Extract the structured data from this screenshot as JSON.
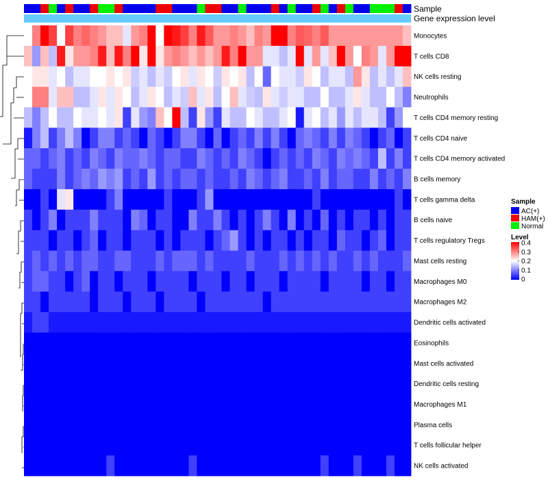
{
  "chart_data": {
    "type": "heatmap",
    "annotation_tracks": [
      "Sample",
      "Gene expression level"
    ],
    "rows": [
      "Monocytes",
      "T cells CD8",
      "NK cells resting",
      "Neutrophils",
      "T cells CD4 memory resting",
      "T cells CD4 naive",
      "T cells CD4 memory activated",
      "B cells memory",
      "T cells gamma delta",
      "B cells naive",
      "T cells regulatory  Tregs",
      "Mast cells resting",
      "Macrophages M0",
      "Macrophages M2",
      "Dendritic cells activated",
      "Eosinophils",
      "Mast cells activated",
      "Dendritic cells resting",
      "Macrophages M1",
      "Plasma cells",
      "T cells follicular helper",
      "NK cells activated"
    ],
    "sample_groups": [
      "A",
      "A",
      "H",
      "N",
      "A",
      "H",
      "A",
      "A",
      "H",
      "N",
      "N",
      "H",
      "A",
      "A",
      "A",
      "A",
      "H",
      "H",
      "A",
      "A",
      "A",
      "N",
      "H",
      "H",
      "A",
      "A",
      "N",
      "A",
      "A",
      "A",
      "H",
      "A",
      "N",
      "A",
      "A",
      "H",
      "N",
      "A",
      "H",
      "N",
      "A",
      "A",
      "N",
      "N",
      "N",
      "H",
      "A"
    ],
    "values": [
      [
        0.2,
        0.3,
        0.4,
        0.35,
        0.2,
        0.35,
        0.3,
        0.32,
        0.3,
        0.28,
        0.25,
        0.25,
        0.18,
        0.28,
        0.3,
        0.4,
        0.2,
        0.4,
        0.38,
        0.35,
        0.3,
        0.38,
        0.33,
        0.28,
        0.28,
        0.3,
        0.28,
        0.25,
        0.3,
        0.28,
        0.4,
        0.4,
        0.3,
        0.33,
        0.32,
        0.3,
        0.33,
        0.28,
        0.28,
        0.28,
        0.28,
        0.28,
        0.28,
        0.28,
        0.28,
        0.28,
        0.25
      ],
      [
        0.25,
        0.12,
        0.25,
        0.15,
        0.38,
        0.22,
        0.28,
        0.28,
        0.3,
        0.38,
        0.25,
        0.38,
        0.3,
        0.4,
        0.22,
        0.4,
        0.22,
        0.28,
        0.3,
        0.28,
        0.25,
        0.28,
        0.25,
        0.28,
        0.38,
        0.3,
        0.4,
        0.28,
        0.28,
        0.18,
        0.18,
        0.15,
        0.18,
        0.4,
        0.18,
        0.28,
        0.18,
        0.25,
        0.4,
        0.28,
        0.2,
        0.3,
        0.28,
        0.18,
        0.28,
        0.4,
        0.4
      ],
      [
        0.2,
        0.22,
        0.22,
        0.18,
        0.2,
        0.15,
        0.18,
        0.18,
        0.2,
        0.2,
        0.22,
        0.2,
        0.22,
        0.16,
        0.18,
        0.15,
        0.18,
        0.16,
        0.2,
        0.22,
        0.18,
        0.22,
        0.2,
        0.16,
        0.22,
        0.2,
        0.22,
        0.15,
        0.2,
        0.08,
        0.2,
        0.18,
        0.18,
        0.16,
        0.22,
        0.2,
        0.15,
        0.18,
        0.18,
        0.15,
        0.28,
        0.22,
        0.15,
        0.18,
        0.15,
        0.18,
        0.25
      ],
      [
        0.2,
        0.3,
        0.3,
        0.18,
        0.25,
        0.25,
        0.15,
        0.15,
        0.18,
        0.22,
        0.18,
        0.22,
        0.2,
        0.15,
        0.18,
        0.22,
        0.2,
        0.15,
        0.18,
        0.16,
        0.25,
        0.18,
        0.22,
        0.15,
        0.2,
        0.25,
        0.18,
        0.16,
        0.15,
        0.22,
        0.18,
        0.16,
        0.18,
        0.18,
        0.15,
        0.15,
        0.2,
        0.15,
        0.15,
        0.18,
        0.22,
        0.18,
        0.15,
        0.15,
        0.2,
        0.15,
        0.1
      ],
      [
        0.15,
        0.1,
        0.15,
        0.2,
        0.15,
        0.15,
        0.2,
        0.18,
        0.18,
        0.2,
        0.18,
        0.22,
        0.05,
        0.18,
        0.12,
        0.1,
        0.25,
        0.2,
        0.4,
        0.15,
        0.05,
        0.22,
        0.12,
        0.05,
        0.18,
        0.15,
        0.15,
        0.2,
        0.18,
        0.15,
        0.15,
        0.18,
        0.2,
        0.02,
        0.18,
        0.2,
        0.15,
        0.18,
        0.12,
        0.18,
        0.15,
        0.18,
        0.18,
        0.15,
        0.05,
        0.12,
        0.2
      ],
      [
        0.02,
        0.1,
        0.15,
        0.05,
        0.1,
        0.15,
        0.1,
        0.0,
        0.05,
        0.1,
        0.1,
        0.05,
        0.08,
        0.05,
        0.0,
        0.08,
        0.05,
        0.0,
        0.05,
        0.1,
        0.1,
        0.05,
        0.0,
        0.08,
        0.0,
        0.05,
        0.08,
        0.05,
        0.1,
        0.05,
        0.1,
        0.05,
        0.0,
        0.08,
        0.1,
        0.08,
        0.05,
        0.1,
        0.05,
        0.1,
        0.08,
        0.05,
        0.0,
        0.05,
        0.08,
        0.0,
        0.05
      ],
      [
        0.08,
        0.08,
        0.05,
        0.08,
        0.1,
        0.05,
        0.08,
        0.05,
        0.1,
        0.08,
        0.05,
        0.1,
        0.08,
        0.08,
        0.1,
        0.08,
        0.05,
        0.08,
        0.08,
        0.05,
        0.05,
        0.1,
        0.08,
        0.05,
        0.08,
        0.05,
        0.1,
        0.08,
        0.05,
        0.0,
        0.05,
        0.08,
        0.05,
        0.08,
        0.05,
        0.1,
        0.08,
        0.05,
        0.1,
        0.08,
        0.1,
        0.08,
        0.05,
        0.15,
        0.05,
        0.1,
        0.05
      ],
      [
        0.08,
        0.05,
        0.05,
        0.05,
        0.1,
        0.05,
        0.08,
        0.1,
        0.08,
        0.12,
        0.1,
        0.12,
        0.05,
        0.08,
        0.05,
        0.12,
        0.05,
        0.08,
        0.05,
        0.08,
        0.08,
        0.05,
        0.08,
        0.05,
        0.05,
        0.08,
        0.05,
        0.1,
        0.08,
        0.05,
        0.08,
        0.1,
        0.05,
        0.05,
        0.08,
        0.05,
        0.1,
        0.05,
        0.08,
        0.08,
        0.05,
        0.05,
        0.1,
        0.05,
        0.08,
        0.05,
        0.1
      ],
      [
        0.0,
        0.0,
        0.05,
        0.0,
        0.18,
        0.22,
        0.0,
        0.0,
        0.0,
        0.0,
        0.05,
        0.1,
        0.0,
        0.0,
        0.0,
        0.0,
        0.0,
        0.05,
        0.0,
        0.0,
        0.0,
        0.05,
        0.12,
        0.0,
        0.0,
        0.0,
        0.0,
        0.0,
        0.0,
        0.0,
        0.0,
        0.0,
        0.0,
        0.0,
        0.0,
        0.05,
        0.0,
        0.0,
        0.0,
        0.0,
        0.0,
        0.0,
        0.0,
        0.0,
        0.0,
        0.05,
        0.0
      ],
      [
        0.05,
        0.0,
        0.05,
        0.1,
        0.0,
        0.05,
        0.05,
        0.05,
        0.1,
        0.05,
        0.05,
        0.05,
        0.0,
        0.1,
        0.08,
        0.0,
        0.05,
        0.05,
        0.0,
        0.0,
        0.1,
        0.05,
        0.05,
        0.1,
        0.05,
        0.0,
        0.05,
        0.0,
        0.05,
        0.1,
        0.05,
        0.0,
        0.1,
        0.0,
        0.05,
        0.0,
        0.08,
        0.0,
        0.05,
        0.0,
        0.05,
        0.05,
        0.0,
        0.05,
        0.0,
        0.05,
        0.05
      ],
      [
        0.05,
        0.05,
        0.05,
        0.0,
        0.05,
        0.05,
        0.0,
        0.05,
        0.08,
        0.0,
        0.05,
        0.05,
        0.0,
        0.05,
        0.05,
        0.05,
        0.0,
        0.05,
        0.0,
        0.05,
        0.05,
        0.05,
        0.0,
        0.05,
        0.08,
        0.12,
        0.05,
        0.0,
        0.05,
        0.0,
        0.05,
        0.05,
        0.0,
        0.05,
        0.0,
        0.05,
        0.05,
        0.0,
        0.08,
        0.05,
        0.05,
        0.0,
        0.05,
        0.08,
        0.0,
        0.05,
        0.05
      ],
      [
        0.05,
        0.08,
        0.05,
        0.08,
        0.05,
        0.08,
        0.05,
        0.08,
        0.08,
        0.05,
        0.05,
        0.08,
        0.08,
        0.05,
        0.05,
        0.05,
        0.08,
        0.05,
        0.08,
        0.08,
        0.08,
        0.05,
        0.08,
        0.05,
        0.05,
        0.05,
        0.05,
        0.08,
        0.05,
        0.05,
        0.05,
        0.08,
        0.05,
        0.08,
        0.05,
        0.08,
        0.05,
        0.08,
        0.05,
        0.05,
        0.08,
        0.05,
        0.08,
        0.05,
        0.05,
        0.05,
        0.08
      ],
      [
        0.05,
        0.08,
        0.08,
        0.05,
        0.05,
        0.0,
        0.05,
        0.08,
        0.0,
        0.05,
        0.05,
        0.0,
        0.05,
        0.05,
        0.05,
        0.0,
        0.05,
        0.05,
        0.05,
        0.05,
        0.0,
        0.05,
        0.05,
        0.05,
        0.0,
        0.05,
        0.05,
        0.0,
        0.05,
        0.05,
        0.05,
        0.0,
        0.05,
        0.05,
        0.05,
        0.05,
        0.0,
        0.05,
        0.05,
        0.05,
        0.05,
        0.0,
        0.05,
        0.05,
        0.0,
        0.05,
        0.05
      ],
      [
        0.05,
        0.05,
        0.0,
        0.05,
        0.05,
        0.05,
        0.05,
        0.05,
        0.0,
        0.05,
        0.05,
        0.05,
        0.0,
        0.05,
        0.05,
        0.05,
        0.0,
        0.05,
        0.05,
        0.05,
        0.05,
        0.0,
        0.05,
        0.05,
        0.05,
        0.05,
        0.05,
        0.05,
        0.05,
        0.0,
        0.05,
        0.05,
        0.05,
        0.05,
        0.05,
        0.05,
        0.05,
        0.05,
        0.05,
        0.05,
        0.05,
        0.05,
        0.05,
        0.05,
        0.05,
        0.05,
        0.05
      ],
      [
        0.02,
        0.05,
        0.05,
        0.02,
        0.02,
        0.02,
        0.02,
        0.02,
        0.02,
        0.02,
        0.02,
        0.02,
        0.02,
        0.02,
        0.02,
        0.02,
        0.02,
        0.02,
        0.02,
        0.02,
        0.02,
        0.02,
        0.02,
        0.02,
        0.02,
        0.02,
        0.02,
        0.02,
        0.02,
        0.02,
        0.02,
        0.02,
        0.02,
        0.02,
        0.02,
        0.02,
        0.02,
        0.02,
        0.02,
        0.02,
        0.02,
        0.02,
        0.02,
        0.02,
        0.02,
        0.02,
        0.02
      ],
      [
        0,
        0,
        0,
        0,
        0,
        0,
        0,
        0,
        0,
        0,
        0,
        0,
        0,
        0,
        0,
        0,
        0,
        0,
        0,
        0,
        0,
        0,
        0,
        0,
        0,
        0,
        0,
        0,
        0,
        0,
        0,
        0,
        0,
        0,
        0,
        0,
        0,
        0,
        0,
        0,
        0,
        0,
        0,
        0,
        0,
        0,
        0
      ],
      [
        0,
        0,
        0,
        0,
        0,
        0,
        0,
        0,
        0,
        0,
        0,
        0,
        0,
        0,
        0,
        0,
        0,
        0,
        0,
        0,
        0,
        0,
        0,
        0,
        0,
        0,
        0,
        0,
        0,
        0,
        0,
        0,
        0,
        0,
        0,
        0,
        0,
        0,
        0,
        0,
        0,
        0,
        0,
        0,
        0,
        0,
        0
      ],
      [
        0,
        0,
        0,
        0,
        0,
        0,
        0,
        0,
        0,
        0,
        0,
        0,
        0,
        0,
        0,
        0,
        0,
        0,
        0,
        0,
        0,
        0,
        0,
        0,
        0,
        0,
        0,
        0,
        0,
        0,
        0,
        0,
        0,
        0,
        0,
        0,
        0,
        0,
        0,
        0,
        0,
        0,
        0,
        0,
        0,
        0,
        0
      ],
      [
        0,
        0,
        0,
        0,
        0,
        0,
        0,
        0,
        0,
        0,
        0,
        0,
        0,
        0,
        0,
        0,
        0,
        0,
        0,
        0,
        0,
        0,
        0,
        0,
        0,
        0,
        0,
        0,
        0,
        0,
        0,
        0,
        0,
        0,
        0,
        0,
        0,
        0,
        0,
        0,
        0,
        0,
        0,
        0,
        0,
        0,
        0
      ],
      [
        0,
        0,
        0,
        0,
        0,
        0,
        0,
        0,
        0,
        0,
        0,
        0,
        0,
        0,
        0,
        0,
        0,
        0,
        0,
        0,
        0,
        0,
        0,
        0,
        0,
        0,
        0,
        0,
        0,
        0,
        0,
        0,
        0,
        0,
        0,
        0,
        0,
        0,
        0,
        0,
        0,
        0,
        0,
        0,
        0,
        0,
        0
      ],
      [
        0,
        0,
        0,
        0,
        0,
        0,
        0,
        0,
        0,
        0,
        0,
        0,
        0,
        0,
        0,
        0,
        0,
        0,
        0,
        0,
        0,
        0,
        0,
        0,
        0,
        0,
        0,
        0,
        0,
        0,
        0,
        0,
        0,
        0,
        0,
        0,
        0,
        0,
        0,
        0,
        0,
        0,
        0,
        0,
        0,
        0,
        0
      ],
      [
        0,
        0,
        0,
        0,
        0,
        0,
        0,
        0,
        0,
        0,
        0.05,
        0,
        0,
        0,
        0,
        0,
        0,
        0,
        0,
        0,
        0.05,
        0,
        0,
        0,
        0,
        0,
        0,
        0,
        0,
        0,
        0,
        0,
        0,
        0,
        0,
        0,
        0.05,
        0,
        0,
        0,
        0.05,
        0,
        0,
        0,
        0.05,
        0,
        0
      ]
    ],
    "legend": {
      "sample_title": "Sample",
      "sample_entries": [
        {
          "key": "A",
          "label": "AC(+)",
          "color": "#0000ee"
        },
        {
          "key": "H",
          "label": "HAM(+)",
          "color": "#ee0000"
        },
        {
          "key": "N",
          "label": "Normal",
          "color": "#00ee00"
        }
      ],
      "level_title": "Level",
      "level_ticks": [
        "0.4",
        "0.3",
        "0.2",
        "0.1",
        "0"
      ],
      "level_range": [
        0,
        0.4
      ]
    },
    "colors": {
      "low": "#0000ff",
      "mid": "#ffffff",
      "high": "#ff0000",
      "expression_bar": "#66ccff"
    }
  }
}
